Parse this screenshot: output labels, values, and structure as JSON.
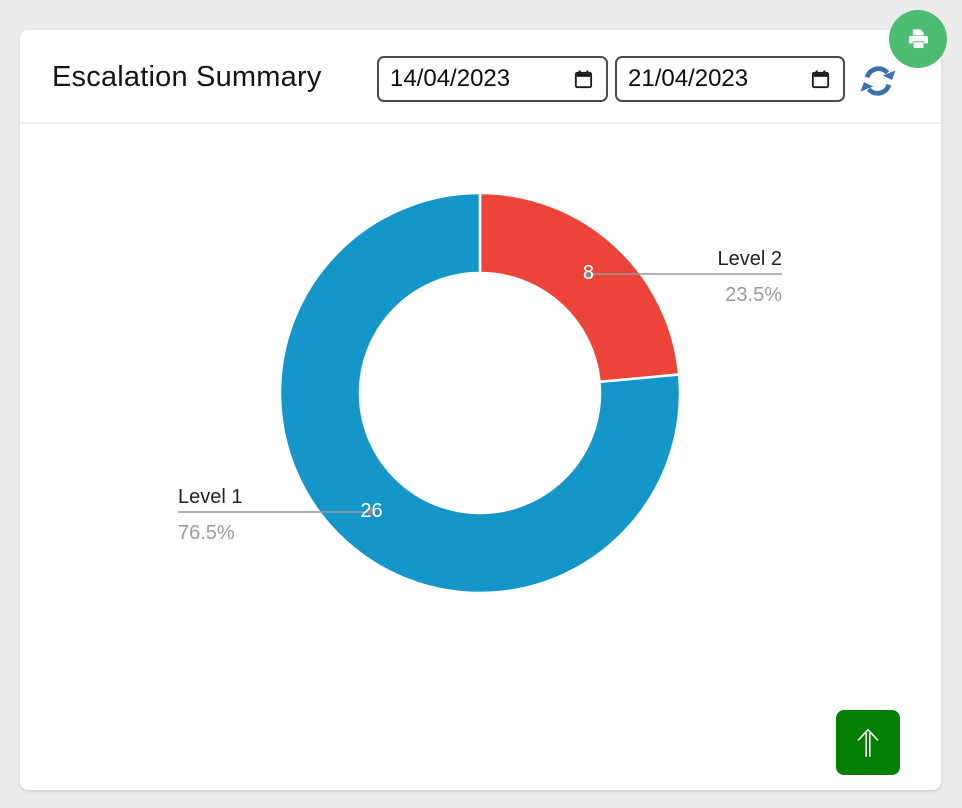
{
  "header": {
    "title": "Escalation Summary",
    "start_date": "14/04/2023",
    "end_date": "21/04/2023"
  },
  "chart_data": {
    "type": "pie",
    "subtype": "donut",
    "title": "Escalation Summary",
    "direction": "clockwise",
    "start_angle_deg": 0,
    "inner_radius_ratio": 0.6,
    "total": 34,
    "slices": [
      {
        "label": "Level 2",
        "value": 8,
        "percent_label": "23.5%",
        "color": "#ec4438"
      },
      {
        "label": "Level 1",
        "value": 26,
        "percent_label": "76.5%",
        "color": "#1497c8"
      }
    ],
    "value_label_color": "#ffffff",
    "name_label_color": "#222222",
    "percent_label_color": "#9a9a9a",
    "leader_line_color": "#999999",
    "leader_dot_color": "#8a8a8a",
    "slice_border_color": "#ffffff",
    "legend": "none"
  },
  "colors": {
    "page_bg": "#ececec",
    "card_bg": "#ffffff",
    "print_button_bg": "#4dbd74",
    "refresh_icon": "#3a72ae",
    "scroll_top_button_bg": "#038003",
    "input_border": "#4b4b4b",
    "calendar_icon": "#1a1a1a"
  },
  "icons": {
    "print": "printer-icon",
    "refresh": "refresh-icon",
    "calendar": "calendar-icon",
    "scroll_top": "arrow-up-icon"
  }
}
